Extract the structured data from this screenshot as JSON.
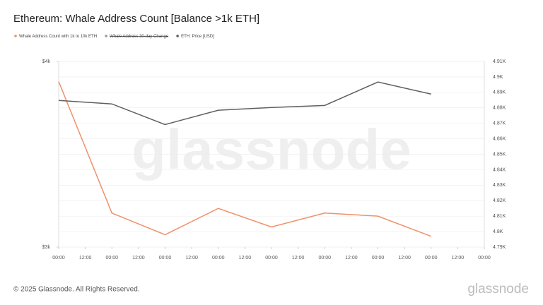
{
  "chart_data": {
    "type": "line",
    "title": "Ethereum: Whale Address Count [Balance >1k ETH]",
    "watermark": "glassnode",
    "footer": "© 2025 Glassnode. All Rights Reserved.",
    "logo": "glassnode",
    "x": [
      0,
      24,
      48,
      72,
      96,
      120,
      144,
      168
    ],
    "xlim": [
      0,
      192
    ],
    "xticks": [
      {
        "value": 0,
        "label": "00:00"
      },
      {
        "value": 12,
        "label": "12:00"
      },
      {
        "value": 24,
        "label": "00:00"
      },
      {
        "value": 36,
        "label": "12:00"
      },
      {
        "value": 48,
        "label": "00:00"
      },
      {
        "value": 60,
        "label": "12:00"
      },
      {
        "value": 72,
        "label": "00:00"
      },
      {
        "value": 84,
        "label": "12:00"
      },
      {
        "value": 96,
        "label": "00:00"
      },
      {
        "value": 108,
        "label": "12:00"
      },
      {
        "value": 120,
        "label": "00:00"
      },
      {
        "value": 132,
        "label": "12:00"
      },
      {
        "value": 144,
        "label": "00:00"
      },
      {
        "value": 156,
        "label": "12:00"
      },
      {
        "value": 168,
        "label": "00:00"
      },
      {
        "value": 180,
        "label": "12:00"
      },
      {
        "value": 192,
        "label": "00:00"
      }
    ],
    "ylim": [
      3000,
      4000
    ],
    "yticks": [
      {
        "value": 3000,
        "label": "$3k"
      },
      {
        "value": 4000,
        "label": "$4k"
      }
    ],
    "y2lim": [
      4790,
      4910
    ],
    "y2ticks": [
      {
        "value": 4790,
        "label": "4.79K"
      },
      {
        "value": 4800,
        "label": "4.8K"
      },
      {
        "value": 4810,
        "label": "4.81K"
      },
      {
        "value": 4820,
        "label": "4.82K"
      },
      {
        "value": 4830,
        "label": "4.83K"
      },
      {
        "value": 4840,
        "label": "4.84K"
      },
      {
        "value": 4850,
        "label": "4.85K"
      },
      {
        "value": 4860,
        "label": "4.86K"
      },
      {
        "value": 4870,
        "label": "4.87K"
      },
      {
        "value": 4880,
        "label": "4.88K"
      },
      {
        "value": 4890,
        "label": "4.89K"
      },
      {
        "value": 4900,
        "label": "4.9K"
      },
      {
        "value": 4910,
        "label": "4.91K"
      }
    ],
    "grid": true,
    "series": [
      {
        "name": "Whale Address Count with 1k to 10k ETH",
        "color": "#f0906a",
        "axis": "y2",
        "values": [
          4897,
          4812,
          4798,
          4815,
          4803,
          4812,
          4810,
          4797
        ]
      },
      {
        "name": "Whale Address 30-day Change",
        "color": "#999999",
        "hidden": true
      },
      {
        "name": "ETH: Price [USD]",
        "color": "#5f5f5f",
        "values": [
          3790,
          3771,
          3660,
          3737,
          3752,
          3763,
          3889,
          3824
        ]
      }
    ]
  }
}
